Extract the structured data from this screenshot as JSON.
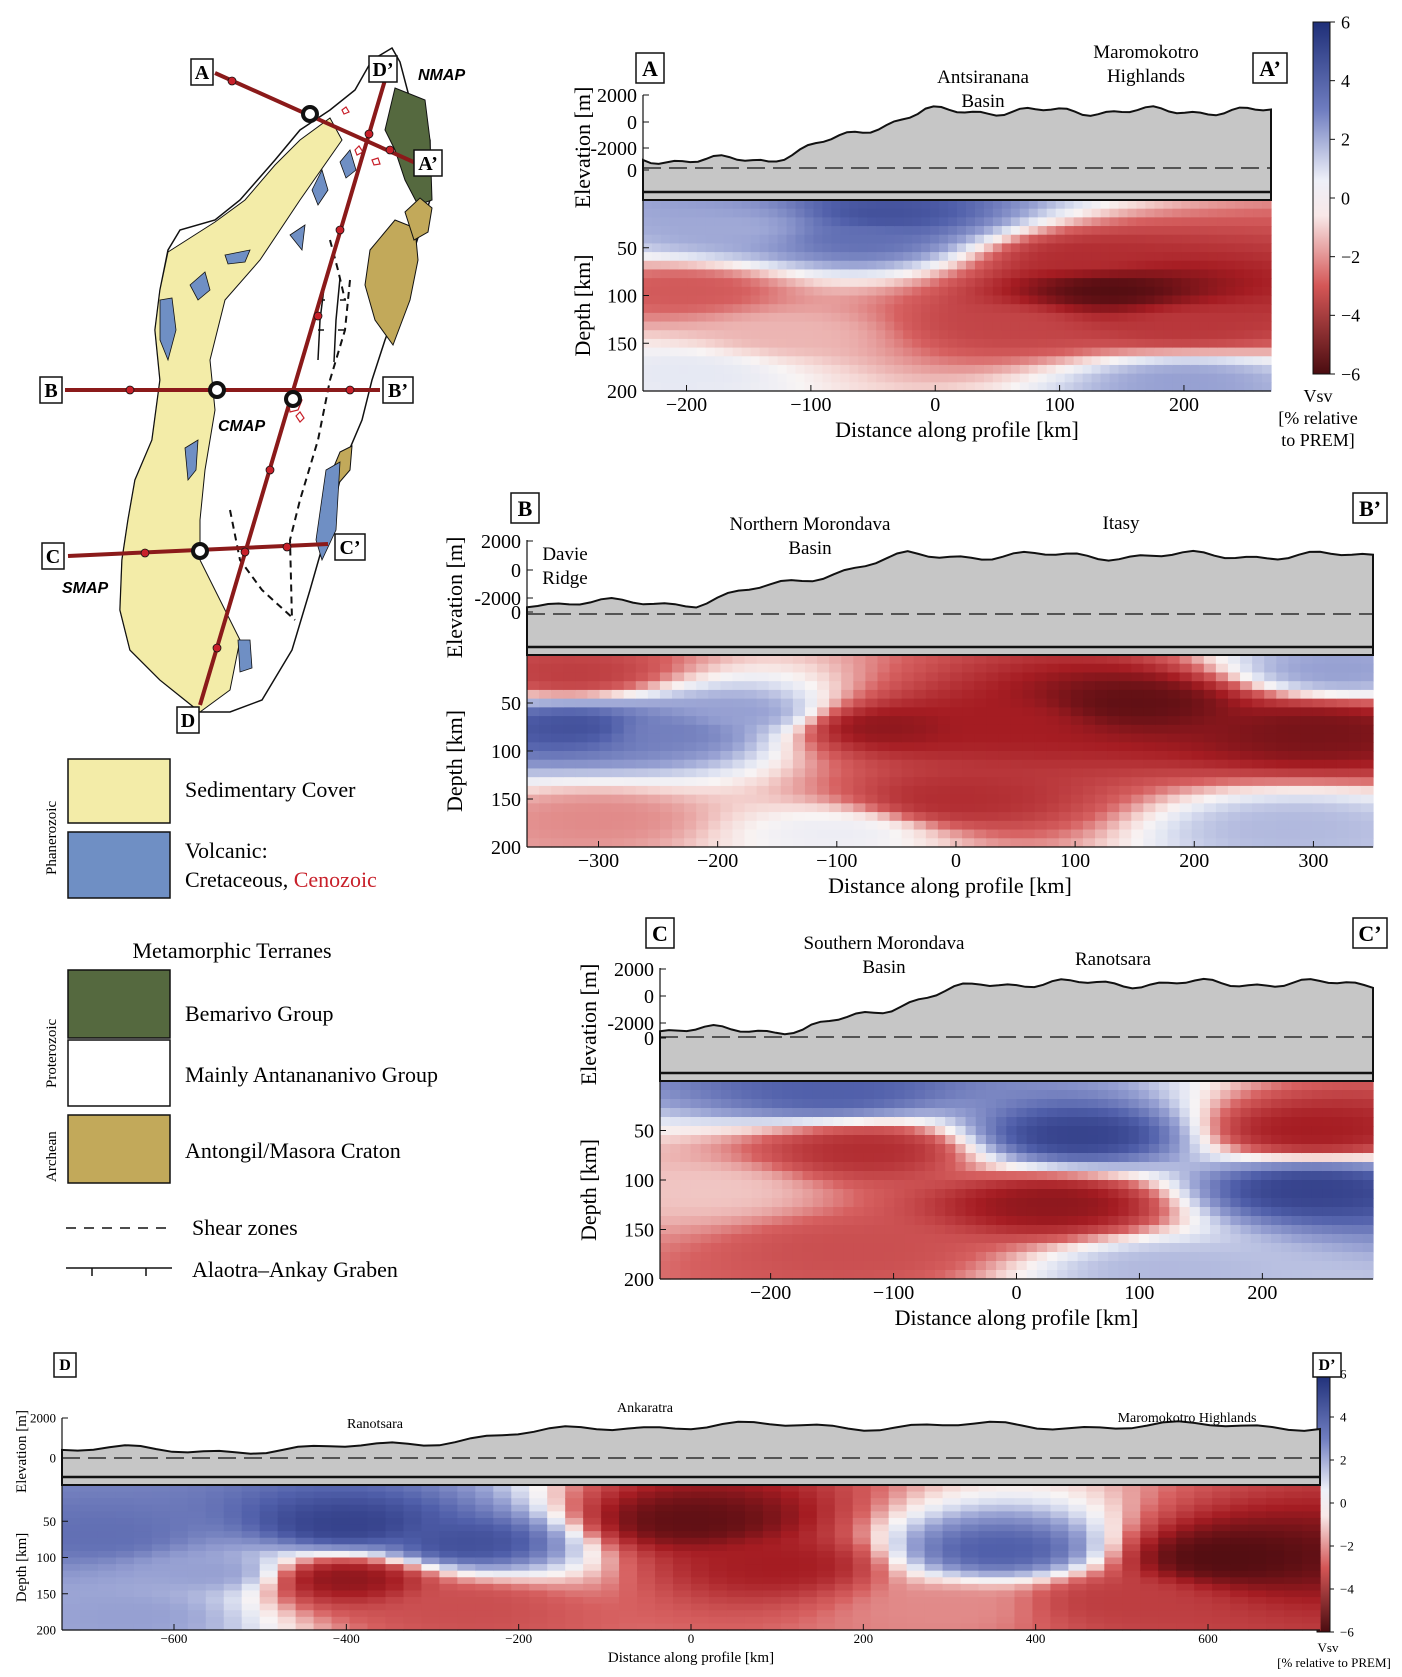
{
  "map": {
    "markers": {
      "A": "A",
      "A_prime": "A’",
      "B": "B",
      "B_prime": "B’",
      "C": "C",
      "C_prime": "C’",
      "D": "D",
      "D_prime": "D’"
    },
    "station_labels": {
      "nmap": "NMAP",
      "cmap": "CMAP",
      "smap": "SMAP"
    }
  },
  "legend": {
    "phanerozoic": "Phanerozoic",
    "proterozoic": "Proterozoic",
    "archean": "Archean",
    "sedimentary": "Sedimentary Cover",
    "volcanic_1": "Volcanic:",
    "volcanic_2": "Cretaceous,",
    "volcanic_cenozoic": "Cenozoic",
    "metamorphic_title": "Metamorphic Terranes",
    "bemarivo": "Bemarivo Group",
    "antananarivo": "Mainly Antanananivo Group",
    "antongil": "Antongil/Masora Craton",
    "shear_zones": "Shear zones",
    "graben": "Alaotra–Ankay Graben",
    "colors": {
      "sedimentary": "#f3eca8",
      "volcanic": "#6f8fc4",
      "bemarivo": "#55693f",
      "antananarivo": "#ffffff",
      "antongil": "#c2a95a",
      "cenozoic": "#c8202a",
      "profile_line": "#8b1a1a"
    }
  },
  "colorbar": {
    "ticks": [
      "6",
      "4",
      "2",
      "0",
      "−2",
      "−4",
      "−6"
    ],
    "label_1": "Vsv",
    "label_2": "[% relative",
    "label_3": "to PREM]",
    "bottom_label_1": "Vsv",
    "bottom_label_2": "[% relative to PREM]"
  },
  "chart_data": [
    {
      "type": "heatmap",
      "id": "A",
      "label_left": "A",
      "label_right": "A’",
      "xlabel": "Distance along profile [km]",
      "ylabel_top": "Elevation [m]",
      "ylabel_bottom": "Depth [km]",
      "xticks": [
        "−200",
        "−100",
        "0",
        "100",
        "200"
      ],
      "elev_ticks": [
        "2000",
        "0",
        "-2000",
        "0"
      ],
      "depth_ticks": [
        "50",
        "100",
        "150",
        "200"
      ],
      "xlim": [
        -235,
        270
      ],
      "ylim_depth": [
        0,
        200
      ],
      "value_range": [
        -6,
        6
      ],
      "annotations": [
        [
          "Antsiranana",
          "Basin"
        ],
        [
          "Maromokotro",
          "Highlands"
        ]
      ],
      "velocity_anomalies": [
        {
          "x": -40,
          "depth": 15,
          "value": 4.5
        },
        {
          "x": -60,
          "depth": 40,
          "value": 3.5
        },
        {
          "x": -160,
          "depth": 30,
          "value": 1.8
        },
        {
          "x": -200,
          "depth": 95,
          "value": -2.2
        },
        {
          "x": 140,
          "depth": 95,
          "value": -5.8
        },
        {
          "x": 120,
          "depth": 60,
          "value": -3.5
        },
        {
          "x": 60,
          "depth": 130,
          "value": -2.8
        },
        {
          "x": 200,
          "depth": 130,
          "value": -3.2
        },
        {
          "x": -120,
          "depth": 140,
          "value": -1.0
        },
        {
          "x": 200,
          "depth": 190,
          "value": 2.0
        },
        {
          "x": -200,
          "depth": 180,
          "value": 0.5
        }
      ]
    },
    {
      "type": "heatmap",
      "id": "B",
      "label_left": "B",
      "label_right": "B’",
      "xlabel": "Distance along profile [km]",
      "ylabel_top": "Elevation [m]",
      "ylabel_bottom": "Depth [km]",
      "xticks": [
        "−300",
        "−200",
        "−100",
        "0",
        "100",
        "200",
        "300"
      ],
      "elev_ticks": [
        "2000",
        "0",
        "-2000",
        "0"
      ],
      "depth_ticks": [
        "50",
        "100",
        "150",
        "200"
      ],
      "xlim": [
        -360,
        350
      ],
      "ylim_depth": [
        0,
        200
      ],
      "value_range": [
        -6,
        6
      ],
      "annotations": [
        [
          "Davie",
          "Ridge"
        ],
        [
          "Northern Morondava",
          "Basin"
        ],
        [
          "Itasy"
        ]
      ],
      "velocity_anomalies": [
        {
          "x": -320,
          "depth": 75,
          "value": 4.5
        },
        {
          "x": -240,
          "depth": 80,
          "value": 3.0
        },
        {
          "x": -180,
          "depth": 60,
          "value": 2.0
        },
        {
          "x": -320,
          "depth": 20,
          "value": -3.0
        },
        {
          "x": -60,
          "depth": 75,
          "value": -4.5
        },
        {
          "x": 40,
          "depth": 70,
          "value": -4.0
        },
        {
          "x": 150,
          "depth": 50,
          "value": -5.5
        },
        {
          "x": 300,
          "depth": 80,
          "value": -5.0
        },
        {
          "x": 0,
          "depth": 150,
          "value": -3.5
        },
        {
          "x": -100,
          "depth": 185,
          "value": 0.3
        },
        {
          "x": 280,
          "depth": 180,
          "value": 1.5
        },
        {
          "x": -300,
          "depth": 170,
          "value": -1.5
        },
        {
          "x": 320,
          "depth": 15,
          "value": 2.0
        }
      ]
    },
    {
      "type": "heatmap",
      "id": "C",
      "label_left": "C",
      "label_right": "C’",
      "xlabel": "Distance along profile [km]",
      "ylabel_top": "Elevation [m]",
      "ylabel_bottom": "Depth [km]",
      "xticks": [
        "−200",
        "−100",
        "0",
        "100",
        "200"
      ],
      "elev_ticks": [
        "2000",
        "0",
        "-2000",
        "0"
      ],
      "depth_ticks": [
        "50",
        "100",
        "150",
        "200"
      ],
      "xlim": [
        -290,
        290
      ],
      "ylim_depth": [
        0,
        200
      ],
      "value_range": [
        -6,
        6
      ],
      "annotations": [
        [
          "Southern Morondava",
          "Basin"
        ],
        [
          "Ranotsara"
        ]
      ],
      "velocity_anomalies": [
        {
          "x": -150,
          "depth": 10,
          "value": 4.0
        },
        {
          "x": 50,
          "depth": 55,
          "value": 5.0
        },
        {
          "x": 240,
          "depth": 110,
          "value": 5.0
        },
        {
          "x": -120,
          "depth": 70,
          "value": -3.5
        },
        {
          "x": 30,
          "depth": 125,
          "value": -4.5
        },
        {
          "x": 240,
          "depth": 50,
          "value": -4.0
        },
        {
          "x": -250,
          "depth": 110,
          "value": -0.8
        },
        {
          "x": -130,
          "depth": 170,
          "value": -2.5
        },
        {
          "x": 120,
          "depth": 190,
          "value": 1.5
        }
      ]
    },
    {
      "type": "heatmap",
      "id": "D",
      "label_left": "D",
      "label_right": "D’",
      "xlabel": "Distance along profile [km]",
      "ylabel_top": "Elevation [m]",
      "ylabel_bottom": "Depth [km]",
      "xticks": [
        "−600",
        "−400",
        "−200",
        "0",
        "200",
        "400",
        "600"
      ],
      "elev_ticks": [
        "2000",
        "0"
      ],
      "depth_ticks": [
        "50",
        "100",
        "150",
        "200"
      ],
      "xlim": [
        -730,
        730
      ],
      "ylim_depth": [
        0,
        200
      ],
      "value_range": [
        -6,
        6
      ],
      "annotations": [
        [
          "Ranotsara"
        ],
        [
          "Ankaratra"
        ],
        [
          "Maromokotro Highlands"
        ]
      ],
      "velocity_anomalies": [
        {
          "x": -680,
          "depth": 70,
          "value": 3.5
        },
        {
          "x": -400,
          "depth": 55,
          "value": 5.0
        },
        {
          "x": -260,
          "depth": 80,
          "value": 4.5
        },
        {
          "x": -560,
          "depth": 120,
          "value": 2.0
        },
        {
          "x": -400,
          "depth": 130,
          "value": -4.5
        },
        {
          "x": -260,
          "depth": 170,
          "value": -2.5
        },
        {
          "x": 0,
          "depth": 50,
          "value": -5.5
        },
        {
          "x": 100,
          "depth": 110,
          "value": -4.0
        },
        {
          "x": 360,
          "depth": 90,
          "value": 4.0
        },
        {
          "x": 620,
          "depth": 100,
          "value": -5.8
        },
        {
          "x": 500,
          "depth": 160,
          "value": -3.0
        },
        {
          "x": -650,
          "depth": 180,
          "value": 2.0
        },
        {
          "x": 300,
          "depth": 170,
          "value": -1.5
        }
      ]
    }
  ]
}
